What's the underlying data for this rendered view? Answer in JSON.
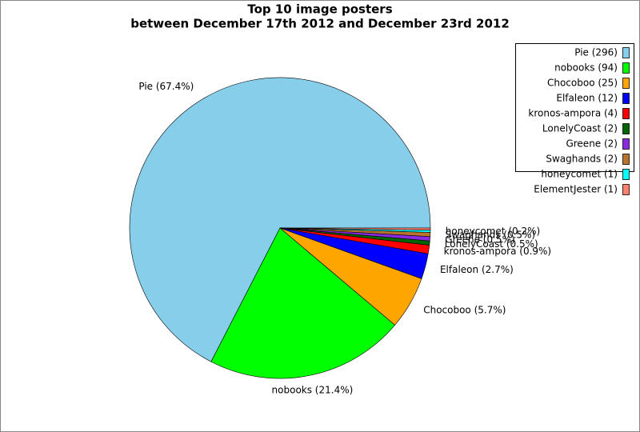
{
  "chart_data": {
    "type": "pie",
    "title": "Top 10 image posters",
    "subtitle": "between December 17th 2012 and December 23rd 2012",
    "categories": [
      "Pie",
      "nobooks",
      "Chocoboo",
      "Elfaleon",
      "kronos-ampora",
      "LonelyCoast",
      "Greene",
      "Swaghands",
      "honeycomet",
      "ElementJester"
    ],
    "values": [
      296,
      94,
      25,
      12,
      4,
      2,
      2,
      2,
      1,
      1
    ],
    "legend_labels": [
      "Pie (296)",
      "nobooks (94)",
      "Chocoboo (25)",
      "Elfaleon (12)",
      "kronos-ampora (4)",
      "LonelyCoast (2)",
      "Greene (2)",
      "Swaghands (2)",
      "honeycomet (1)",
      "ElementJester (1)"
    ],
    "value_labels": [
      "Pie (67.4%)",
      "nobooks (21.4%)",
      "Chocoboo (5.7%)",
      "Elfaleon (2.7%)",
      "kronos-ampora (0.9%)",
      "LonelyCoast (0.5%)",
      "Greene (0.5%)",
      "Swaghands (0.5%)",
      "honeycomet (0.2%)",
      null
    ],
    "colors": [
      "#87ceeb",
      "#00ff00",
      "#ffa500",
      "#0000ff",
      "#ff0000",
      "#006400",
      "#8a2be2",
      "#b8732e",
      "#00ffff",
      "#fa8072"
    ],
    "legend": "upper right"
  }
}
